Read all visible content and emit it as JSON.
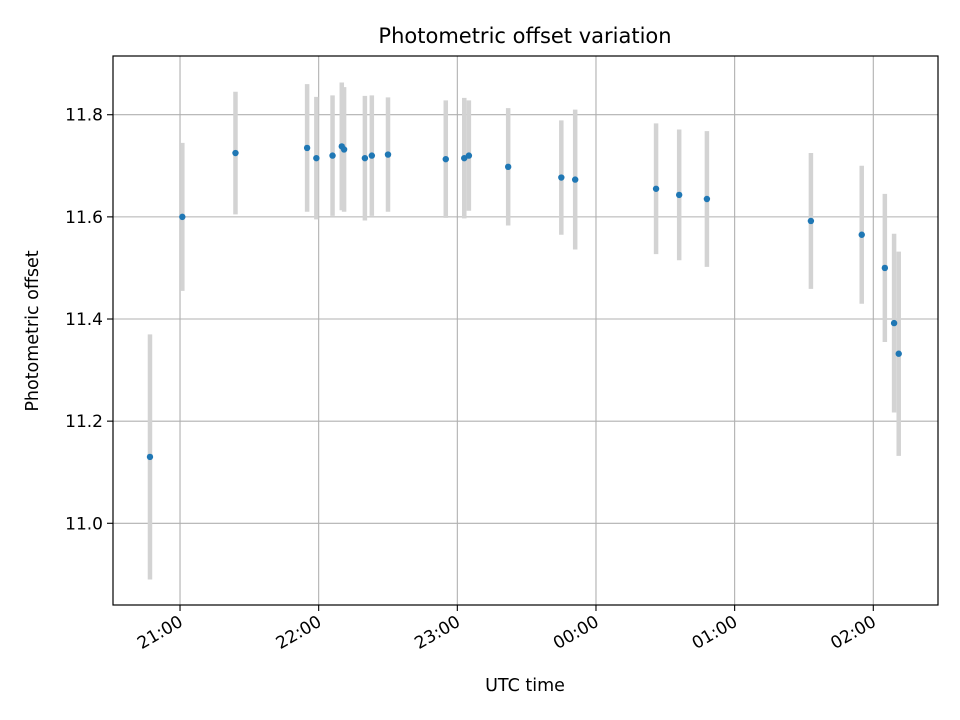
{
  "chart_data": {
    "type": "scatter",
    "title": "Photometric offset variation",
    "xlabel": "UTC time",
    "ylabel": "Photometric offset",
    "x_axis_kind": "time",
    "xlim": [
      "20:31",
      "02:28"
    ],
    "ylim": [
      10.84,
      11.915
    ],
    "grid": true,
    "x_ticks": [
      "21:00",
      "22:00",
      "23:00",
      "00:00",
      "01:00",
      "02:00"
    ],
    "y_ticks": [
      11.0,
      11.2,
      11.4,
      11.6,
      11.8
    ],
    "y_tick_labels": [
      "11.0",
      "11.2",
      "11.4",
      "11.6",
      "11.8"
    ],
    "colors": {
      "marker": "#1f77b4",
      "errorbar": "#d3d3d3",
      "grid": "#b0b0b0"
    },
    "points": [
      {
        "x": "20:47",
        "y": 11.13,
        "err": 0.24
      },
      {
        "x": "21:01",
        "y": 11.6,
        "err": 0.145
      },
      {
        "x": "21:24",
        "y": 11.725,
        "err": 0.12
      },
      {
        "x": "21:55",
        "y": 11.735,
        "err": 0.125
      },
      {
        "x": "21:59",
        "y": 11.715,
        "err": 0.12
      },
      {
        "x": "22:06",
        "y": 11.72,
        "err": 0.118
      },
      {
        "x": "22:10",
        "y": 11.738,
        "err": 0.125
      },
      {
        "x": "22:11",
        "y": 11.732,
        "err": 0.122
      },
      {
        "x": "22:20",
        "y": 11.715,
        "err": 0.122
      },
      {
        "x": "22:23",
        "y": 11.72,
        "err": 0.118
      },
      {
        "x": "22:30",
        "y": 11.722,
        "err": 0.112
      },
      {
        "x": "22:55",
        "y": 11.713,
        "err": 0.115
      },
      {
        "x": "23:03",
        "y": 11.715,
        "err": 0.118
      },
      {
        "x": "23:05",
        "y": 11.72,
        "err": 0.108
      },
      {
        "x": "23:22",
        "y": 11.698,
        "err": 0.115
      },
      {
        "x": "23:45",
        "y": 11.677,
        "err": 0.112
      },
      {
        "x": "23:51",
        "y": 11.673,
        "err": 0.137
      },
      {
        "x": "00:26",
        "y": 11.655,
        "err": 0.128
      },
      {
        "x": "00:36",
        "y": 11.643,
        "err": 0.128
      },
      {
        "x": "00:48",
        "y": 11.635,
        "err": 0.133
      },
      {
        "x": "01:33",
        "y": 11.592,
        "err": 0.133
      },
      {
        "x": "01:55",
        "y": 11.565,
        "err": 0.135
      },
      {
        "x": "02:05",
        "y": 11.5,
        "err": 0.145
      },
      {
        "x": "02:09",
        "y": 11.392,
        "err": 0.175
      },
      {
        "x": "02:11",
        "y": 11.332,
        "err": 0.2
      }
    ]
  }
}
